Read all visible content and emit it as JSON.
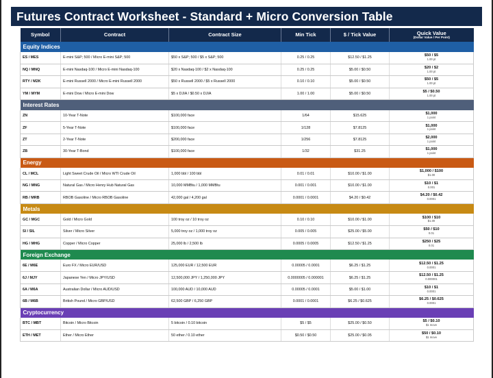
{
  "title": "Futures Contract Worksheet - Standard + Micro Conversion Table",
  "headers": {
    "symbol": "Symbol",
    "contract": "Contract",
    "size": "Contract Size",
    "min_tick": "Min Tick",
    "tick_value": "$ / Tick Value",
    "quick_value": "Quick Value",
    "quick_value_sub": "(Dollar Value / Per Point)"
  },
  "colors": {
    "header_bg": "#13294b",
    "equity": "#1f5fa5",
    "rates": "#4f5f7a",
    "energy": "#c95a14",
    "metals": "#c78a14",
    "fx": "#1f8a4f",
    "crypto": "#6a3fb5"
  },
  "sections": [
    {
      "name": "Equity Indices",
      "color": "#1f5fa5",
      "rows": [
        {
          "symbol": "ES / MES",
          "contract": "E-mini S&P; 500 / Micro E-mini S&P; 500",
          "size": "$50 x S&P; 500 / $5 x S&P; 500",
          "min_tick": "0.25 / 0.25",
          "tick_value": "$12.50 / $1.25",
          "qv": "$50 / $5",
          "qv_sub": "1.00 pt"
        },
        {
          "symbol": "NQ / MNQ",
          "contract": "E-mini Nasdaq-100 / Micro E-mini Nasdaq-100",
          "size": "$20 x Nasdaq-100 / $2 x Nasdaq-100",
          "min_tick": "0.25 / 0.25",
          "tick_value": "$5.00 / $0.50",
          "qv": "$20 / $2",
          "qv_sub": "1.00 pt"
        },
        {
          "symbol": "RTY / M2K",
          "contract": "E-mini Russell 2000 / Micro E-mini Russell 2000",
          "size": "$50 x Russell 2000 / $5 x Russell 2000",
          "min_tick": "0.10 / 0.10",
          "tick_value": "$5.00 / $0.50",
          "qv": "$50 / $5",
          "qv_sub": "1.00 pt"
        },
        {
          "symbol": "YM / MYM",
          "contract": "E-mini Dow / Micro E-mini Dow",
          "size": "$5 x DJIA / $0.50 x DJIA",
          "min_tick": "1.00 / 1.00",
          "tick_value": "$5.00 / $0.50",
          "qv": "$5 / $0.50",
          "qv_sub": "1.00 pt"
        }
      ]
    },
    {
      "name": "Interest Rates",
      "color": "#4f5f7a",
      "rows": [
        {
          "symbol": "ZN",
          "contract": "10-Year T-Note",
          "size": "$100,000 face",
          "min_tick": "1/64",
          "tick_value": "$15.625",
          "qv": "$1,000",
          "qv_sub": "1 point"
        },
        {
          "symbol": "ZF",
          "contract": "5-Year T-Note",
          "size": "$100,000 face",
          "min_tick": "1/128",
          "tick_value": "$7.8125",
          "qv": "$1,000",
          "qv_sub": "1 point"
        },
        {
          "symbol": "ZT",
          "contract": "2-Year T-Note",
          "size": "$200,000 face",
          "min_tick": "1/256",
          "tick_value": "$7.8125",
          "qv": "$2,000",
          "qv_sub": "1 point"
        },
        {
          "symbol": "ZB",
          "contract": "30-Year T-Bond",
          "size": "$100,000 face",
          "min_tick": "1/32",
          "tick_value": "$31.25",
          "qv": "$1,000",
          "qv_sub": "1 point"
        }
      ]
    },
    {
      "name": "Energy",
      "color": "#c95a14",
      "rows": [
        {
          "symbol": "CL / MCL",
          "contract": "Light Sweet Crude Oil / Micro WTI Crude Oil",
          "size": "1,000 bbl / 100 bbl",
          "min_tick": "0.01 / 0.01",
          "tick_value": "$10.00 / $1.00",
          "qv": "$1,000 / $100",
          "qv_sub": "$1.00"
        },
        {
          "symbol": "NG / MNG",
          "contract": "Natural Gas / Micro Henry Hub Natural Gas",
          "size": "10,000 MMBtu / 1,000 MMBtu",
          "min_tick": "0.001 / 0.001",
          "tick_value": "$10.00 / $1.00",
          "qv": "$10 / $1",
          "qv_sub": "0.001"
        },
        {
          "symbol": "RB / MRB",
          "contract": "RBOB Gasoline / Micro RBOB Gasoline",
          "size": "42,000 gal / 4,200 gal",
          "min_tick": "0.0001 / 0.0001",
          "tick_value": "$4.20 / $0.42",
          "qv": "$4.20 / $0.42",
          "qv_sub": "0.0001"
        }
      ]
    },
    {
      "name": "Metals",
      "color": "#c78a14",
      "rows": [
        {
          "symbol": "GC / MGC",
          "contract": "Gold / Micro Gold",
          "size": "100 troy oz / 10 troy oz",
          "min_tick": "0.10 / 0.10",
          "tick_value": "$10.00 / $1.00",
          "qv": "$100 / $10",
          "qv_sub": "$1.00"
        },
        {
          "symbol": "SI / SIL",
          "contract": "Silver / Micro Silver",
          "size": "5,000 troy oz / 1,000 troy oz",
          "min_tick": "0.005 / 0.005",
          "tick_value": "$25.00 / $5.00",
          "qv": "$50 / $10",
          "qv_sub": "0.01"
        },
        {
          "symbol": "HG / MHG",
          "contract": "Copper / Micro Copper",
          "size": "25,000 lb / 2,500 lb",
          "min_tick": "0.0005 / 0.0005",
          "tick_value": "$12.50 / $1.25",
          "qv": "$250 / $25",
          "qv_sub": "0.01"
        }
      ]
    },
    {
      "name": "Foreign Exchange",
      "color": "#1f8a4f",
      "rows": [
        {
          "symbol": "6E / M6E",
          "contract": "Euro FX / Micro EUR/USD",
          "size": "125,000 EUR / 12,500 EUR",
          "min_tick": "0.00005 / 0.0001",
          "tick_value": "$6.25 / $1.25",
          "qv": "$12.50 / $1.25",
          "qv_sub": "0.0001"
        },
        {
          "symbol": "6J / MJY",
          "contract": "Japanese Yen / Micro JPY/USD",
          "size": "12,500,000 JPY / 1,250,000 JPY",
          "min_tick": "0.0000005 / 0.000001",
          "tick_value": "$6.25 / $1.25",
          "qv": "$12.50 / $1.25",
          "qv_sub": "0.000001"
        },
        {
          "symbol": "6A / M6A",
          "contract": "Australian Dollar / Micro AUD/USD",
          "size": "100,000 AUD / 10,000 AUD",
          "min_tick": "0.00005 / 0.0001",
          "tick_value": "$5.00 / $1.00",
          "qv": "$10 / $1",
          "qv_sub": "0.0001"
        },
        {
          "symbol": "6B / M6B",
          "contract": "British Pound / Micro GBP/USD",
          "size": "62,500 GBP / 6,250 GBP",
          "min_tick": "0.0001 / 0.0001",
          "tick_value": "$6.25 / $0.625",
          "qv": "$6.25 / $0.625",
          "qv_sub": "0.0001"
        }
      ]
    },
    {
      "name": "Cryptocurrency",
      "color": "#6a3fb5",
      "rows": [
        {
          "symbol": "BTC / MBT",
          "contract": "Bitcoin / Micro Bitcoin",
          "size": "5 bitcoin / 0.10 bitcoin",
          "min_tick": "$5 / $5",
          "tick_value": "$25.00 / $0.50",
          "qv": "$5 / $0.10",
          "qv_sub": "$1 move"
        },
        {
          "symbol": "ETH / MET",
          "contract": "Ether / Micro Ether",
          "size": "50 ether / 0.10 ether",
          "min_tick": "$0.50 / $0.50",
          "tick_value": "$25.00 / $0.05",
          "qv": "$50 / $0.10",
          "qv_sub": "$1 move"
        }
      ]
    }
  ]
}
